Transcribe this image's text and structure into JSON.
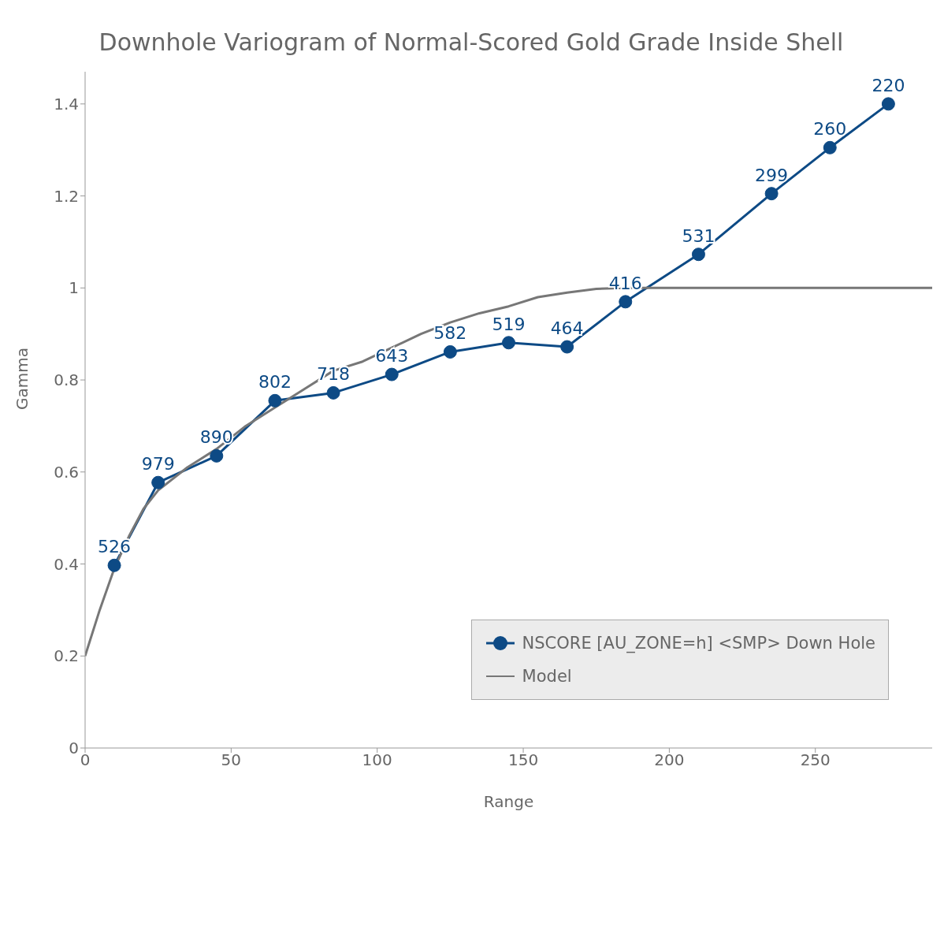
{
  "chart_data": {
    "type": "line",
    "title": "Downhole Variogram of Normal-Scored Gold Grade Inside Shell",
    "xlabel": "Range",
    "ylabel": "Gamma",
    "xlim": [
      0,
      290
    ],
    "xticks": [
      0,
      50,
      100,
      150,
      200,
      250
    ],
    "ylim": [
      0,
      1.47
    ],
    "yticks": [
      0,
      0.2,
      0.4,
      0.6,
      0.8,
      1,
      1.2,
      1.4
    ],
    "grid": false,
    "legend": "bottom right",
    "annotations": [
      {
        "text": "526",
        "x": 10,
        "y": 0.397
      },
      {
        "text": "979",
        "x": 25,
        "y": 0.577
      },
      {
        "text": "890",
        "x": 45,
        "y": 0.635
      },
      {
        "text": "802",
        "x": 65,
        "y": 0.755
      },
      {
        "text": "718",
        "x": 85,
        "y": 0.772
      },
      {
        "text": "643",
        "x": 105,
        "y": 0.812
      },
      {
        "text": "582",
        "x": 125,
        "y": 0.861
      },
      {
        "text": "519",
        "x": 145,
        "y": 0.881
      },
      {
        "text": "464",
        "x": 165,
        "y": 0.872
      },
      {
        "text": "416",
        "x": 185,
        "y": 0.97
      },
      {
        "text": "531",
        "x": 210,
        "y": 1.073
      },
      {
        "text": "299",
        "x": 235,
        "y": 1.205
      },
      {
        "text": "260",
        "x": 255,
        "y": 1.305
      },
      {
        "text": "220",
        "x": 275,
        "y": 1.4
      }
    ],
    "series": [
      {
        "name": "NSCORE [AU_ZONE=h] <SMP> Down Hole",
        "color": "#0d4a85",
        "marker": "circle",
        "x": [
          10,
          25,
          45,
          65,
          85,
          105,
          125,
          145,
          165,
          185,
          210,
          235,
          255,
          275
        ],
        "values": [
          0.397,
          0.577,
          0.635,
          0.755,
          0.772,
          0.812,
          0.861,
          0.881,
          0.872,
          0.97,
          1.073,
          1.205,
          1.305,
          1.4
        ]
      },
      {
        "name": "Model",
        "color": "#777777",
        "marker": "none",
        "x": [
          0,
          5,
          10,
          15,
          20,
          25,
          35,
          45,
          55,
          65,
          75,
          85,
          95,
          105,
          115,
          125,
          135,
          145,
          155,
          165,
          175,
          185,
          290
        ],
        "values": [
          0.2,
          0.3,
          0.39,
          0.46,
          0.52,
          0.56,
          0.61,
          0.65,
          0.7,
          0.74,
          0.78,
          0.82,
          0.84,
          0.87,
          0.9,
          0.925,
          0.945,
          0.96,
          0.98,
          0.99,
          0.998,
          1,
          1
        ]
      }
    ]
  }
}
